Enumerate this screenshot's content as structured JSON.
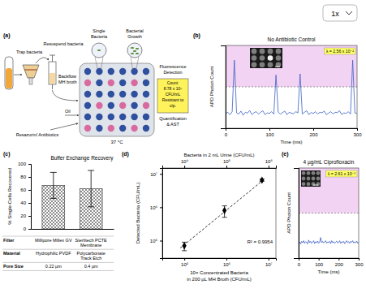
{
  "zoom_label": "1x",
  "panel_a": {
    "label": "(a)",
    "trap": "Trap bacteria",
    "resuspend": "Resuspend bacteria",
    "backflow": [
      "Backflow",
      "MH broth"
    ],
    "single": [
      "Single",
      "Bacteria"
    ],
    "growth": [
      "Bacterial",
      "Growth"
    ],
    "detection": [
      "Fluorescence",
      "Detection"
    ],
    "count": [
      "Count:",
      "8.78 x 10⁵",
      "CFU/mL",
      "Resistant to",
      "cip."
    ],
    "quantification": [
      "Quantification",
      "& AST"
    ],
    "oil": "Oil",
    "reagents": "Resazurin/ Antibiotics",
    "temperature": "37 °C"
  },
  "chart_data": [
    {
      "panel_label": "(b)",
      "type": "line",
      "title": "No Antibiotic Control",
      "xlabel": "Time (ms)",
      "ylabel": "APD Photon Count",
      "annotation": "λ = 2.56 x 10⁻²",
      "x": [
        0,
        5,
        10,
        15,
        20,
        25,
        30,
        35,
        40,
        45,
        50,
        55,
        60,
        65,
        70,
        75,
        80,
        85,
        90,
        95,
        100,
        105,
        110,
        115,
        120,
        125,
        130,
        135,
        140,
        145,
        150,
        155,
        160,
        165,
        170,
        175,
        180,
        185,
        190,
        195,
        200,
        205,
        210,
        215,
        220,
        225,
        230,
        235,
        240,
        245,
        250,
        255,
        260,
        265,
        270,
        275,
        280,
        285,
        290,
        295,
        300
      ],
      "values": [
        450,
        470,
        430,
        480,
        1350,
        460,
        440,
        490,
        420,
        470,
        455,
        500,
        430,
        465,
        480,
        440,
        470,
        495,
        430,
        460,
        450,
        480,
        440,
        1100,
        470,
        440,
        465,
        490,
        430,
        470,
        455,
        445,
        480,
        460,
        1120,
        440,
        470,
        495,
        430,
        465,
        450,
        480,
        440,
        470,
        460,
        490,
        430,
        455,
        480,
        440,
        470,
        465,
        495,
        430,
        460,
        450,
        480,
        440,
        1350,
        460,
        450
      ],
      "color": "#3b60c4",
      "threshold": 900,
      "xlim": [
        0,
        300
      ],
      "xticks": [
        0,
        100,
        200,
        300
      ],
      "ylim": [
        200,
        1600
      ],
      "tick_labels": "x"
    },
    {
      "panel_label": "(c)",
      "type": "bar",
      "title": "Buffer Exchange Recovery",
      "ylabel": "% Single-Cells Recovered",
      "categories": [
        null,
        null
      ],
      "values": [
        67,
        62
      ],
      "errors": [
        20,
        28
      ],
      "color": "#707070",
      "ylim": [
        0,
        100
      ],
      "yticks": [
        0,
        20,
        40,
        60,
        80,
        100
      ],
      "table": {
        "rows": [
          [
            "Filter",
            "Millipore Millex GV",
            "Sterlitech PCTE Membrane"
          ],
          [
            "Material",
            "Hydrophilic PVDF",
            "Polycarbonate Track Etch"
          ],
          [
            "Pore Size",
            "0.22 µm",
            "0.4 µm"
          ]
        ]
      }
    },
    {
      "panel_label": "(d)",
      "type": "scatter",
      "x2label": "Bacteria in 2 mL Urine (CFU/mL)",
      "xlabel": [
        "10× Concentrated Bacteria",
        "in 200 µL MH Broth (CFU/mL)"
      ],
      "ylabel": "Detected Bacteria (CFU/mL)",
      "annotation": "R² = 0.9954",
      "x": [
        100000,
        900000,
        7000000
      ],
      "values": [
        70000,
        800000,
        6500000
      ],
      "errors": [
        20000,
        300000,
        500000
      ],
      "fit": {
        "x": [
          80000,
          8000000
        ],
        "values": [
          60000,
          7000000
        ],
        "line_style": "dashed"
      },
      "color": "#000000",
      "marker": "diamond",
      "log": true,
      "xlim": [
        30000,
        15000000
      ],
      "xticks": [
        {
          "value": 100000,
          "label": "10⁵"
        },
        {
          "value": 1000000,
          "label": "10⁶"
        },
        {
          "value": 10000000,
          "label": "10⁷"
        }
      ],
      "x2lim": [
        3000,
        1500000
      ],
      "x2ticks": [
        {
          "value": 10000,
          "label": "10⁴"
        },
        {
          "value": 100000,
          "label": "10⁵"
        },
        {
          "value": 1000000,
          "label": "10⁶"
        }
      ],
      "ylim": [
        30000,
        15000000
      ],
      "yticks": [
        {
          "value": 100000,
          "label": "10⁵"
        },
        {
          "value": 1000000,
          "label": "10⁶"
        },
        {
          "value": 10000000,
          "label": "10⁷"
        }
      ]
    },
    {
      "panel_label": "(e)",
      "type": "line",
      "title": "4 µg/mL Ciprofloxacin",
      "xlabel": "Time (ms)",
      "ylabel": "APD Photon Count",
      "annotation": "λ = 2.61 x 10⁻³",
      "x": [
        0,
        5,
        10,
        15,
        20,
        25,
        30,
        35,
        40,
        45,
        50,
        55,
        60,
        65,
        70,
        75,
        80,
        85,
        90,
        95,
        100,
        105,
        110,
        115,
        120,
        125,
        130,
        135,
        140,
        145,
        150,
        155,
        160,
        165,
        170,
        175,
        180,
        185,
        190,
        195,
        200,
        205,
        210,
        215,
        220,
        225,
        230,
        235,
        240,
        245,
        250,
        255,
        260,
        265,
        270,
        275,
        280,
        285,
        290,
        295,
        300
      ],
      "values": [
        430,
        450,
        420,
        460,
        440,
        470,
        430,
        455,
        445,
        420,
        480,
        440,
        460,
        430,
        450,
        470,
        425,
        455,
        440,
        465,
        430,
        450,
        520,
        440,
        460,
        435,
        455,
        470,
        430,
        450,
        445,
        460,
        425,
        470,
        440,
        455,
        430,
        450,
        465,
        435,
        445,
        470,
        430,
        455,
        440,
        460,
        425,
        450,
        470,
        440,
        455,
        430,
        460,
        445,
        470,
        435,
        450,
        440,
        465,
        430,
        450
      ],
      "color": "#3b60c4",
      "threshold": 900,
      "xlim": [
        0,
        300
      ],
      "xticks": [
        0,
        100,
        200,
        300
      ],
      "ylim": [
        200,
        1600
      ],
      "tick_labels": "x"
    }
  ]
}
